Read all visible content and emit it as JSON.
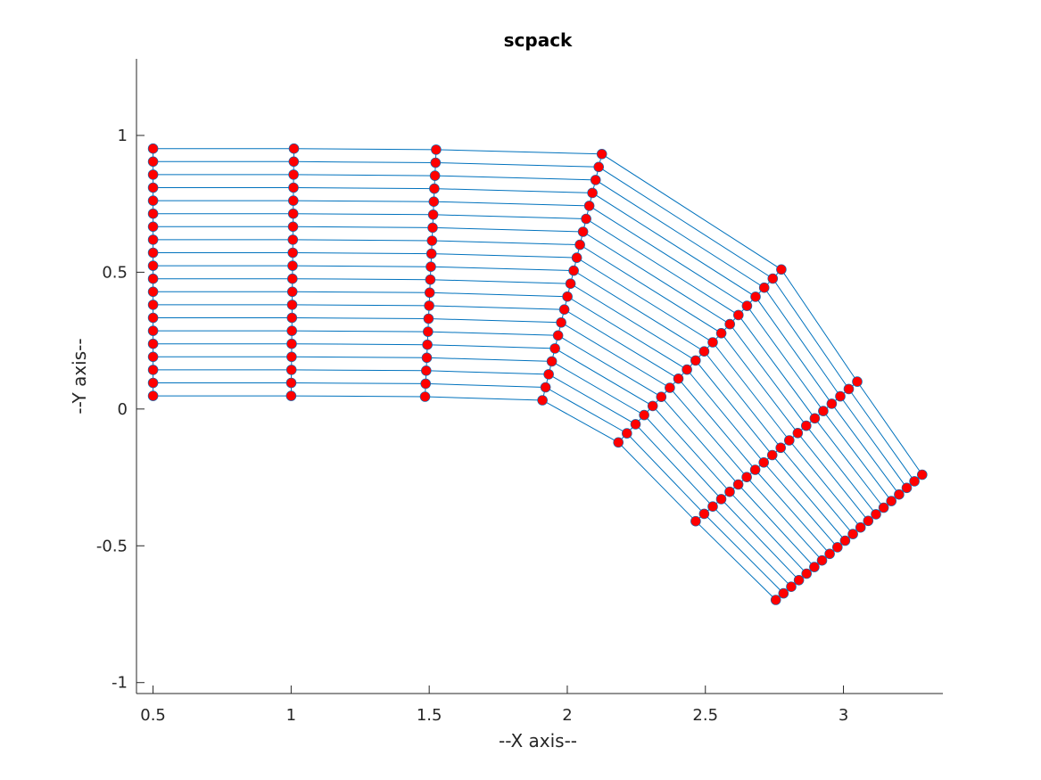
{
  "chart_data": {
    "type": "line",
    "title": "scpack",
    "xlabel": "--X axis--",
    "ylabel": "--Y axis--",
    "xlim": [
      0.44,
      3.36
    ],
    "ylim": [
      -1.04,
      1.28
    ],
    "xticks": [
      0.5,
      1,
      1.5,
      2,
      2.5,
      3
    ],
    "xtick_labels": [
      "0.5",
      "1",
      "1.5",
      "2",
      "2.5",
      "3"
    ],
    "yticks": [
      -1,
      -0.5,
      0,
      0.5,
      1
    ],
    "ytick_labels": [
      "-1",
      "-0.5",
      "0",
      "0.5",
      "1"
    ],
    "grid": false,
    "legend": "none",
    "line_color": "#0072bd",
    "marker_color": "#ff0000",
    "marker_edge_color": "#0072bd",
    "n_rows": 20,
    "columns": [
      {
        "name": "col1",
        "x_start": 0.5,
        "y_start": 0.048,
        "x_end": 0.5,
        "y_end": 0.952
      },
      {
        "name": "col2",
        "x_start": 1.0,
        "y_start": 0.048,
        "x_end": 1.01,
        "y_end": 0.952
      },
      {
        "name": "col3",
        "x_start": 1.485,
        "y_start": 0.045,
        "x_end": 1.525,
        "y_end": 0.948
      },
      {
        "name": "col4",
        "x_start": 1.91,
        "y_start": 0.032,
        "x_end": 2.125,
        "y_end": 0.932
      },
      {
        "name": "col5",
        "x_start": 2.185,
        "y_start": -0.122,
        "x_end": 2.775,
        "y_end": 0.51
      },
      {
        "name": "col6",
        "x_start": 2.465,
        "y_start": -0.41,
        "x_end": 3.05,
        "y_end": 0.1
      },
      {
        "name": "col7",
        "x_start": 2.755,
        "y_start": -0.698,
        "x_end": 3.285,
        "y_end": -0.24
      }
    ]
  }
}
